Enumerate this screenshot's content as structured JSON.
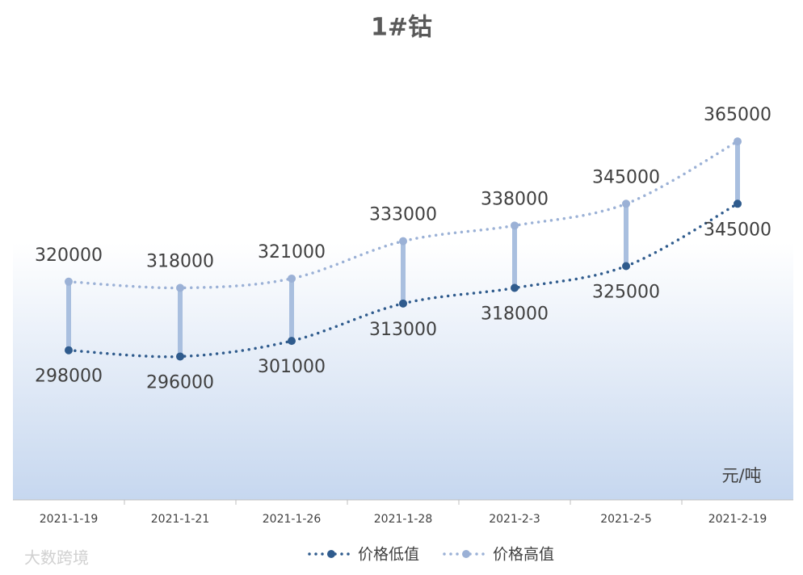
{
  "chart_data": {
    "type": "line",
    "title": "1#钴",
    "unit_label": "元/吨",
    "watermark": "大数跨境",
    "categories": [
      "2021-1-19",
      "2021-1-21",
      "2021-1-26",
      "2021-1-28",
      "2021-2-3",
      "2021-2-5",
      "2021-2-19"
    ],
    "series": [
      {
        "name": "价格低值",
        "color": "#2f5b8d",
        "values": [
          298000,
          296000,
          301000,
          313000,
          318000,
          325000,
          345000
        ]
      },
      {
        "name": "价格高值",
        "color": "#9bb1d6",
        "values": [
          320000,
          318000,
          321000,
          333000,
          338000,
          345000,
          365000
        ]
      }
    ],
    "ylim": [
      250000,
      400000
    ],
    "high_low_lines": true,
    "legend": "bottom"
  }
}
